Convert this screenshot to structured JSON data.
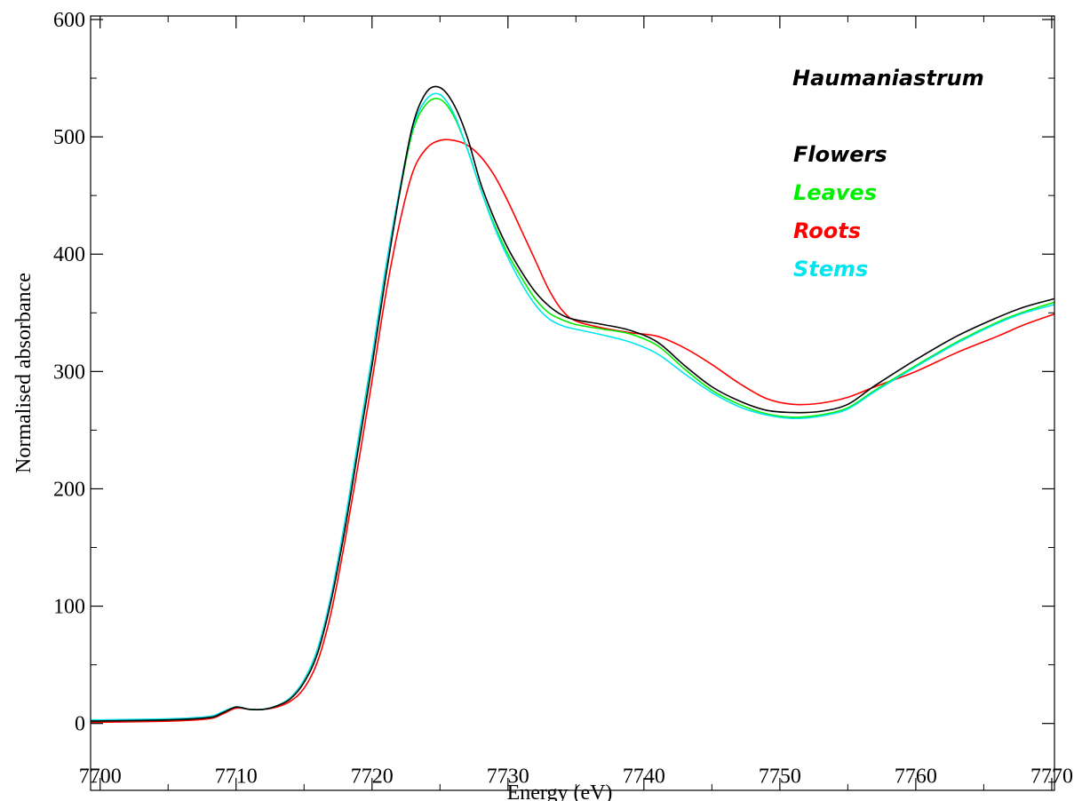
{
  "chart_data": {
    "type": "line",
    "title": "",
    "annotation": "Haumaniastrum",
    "xlabel": "Energy (eV)",
    "ylabel": "Normalised absorbance",
    "xlim": [
      7699.3,
      7770.2
    ],
    "ylim": [
      -57,
      603
    ],
    "xticks": [
      7700,
      7710,
      7720,
      7730,
      7740,
      7750,
      7760,
      7770
    ],
    "yticks": [
      0,
      100,
      200,
      300,
      400,
      500,
      600
    ],
    "grid": false,
    "legend_position": "top-right",
    "series": [
      {
        "name": "Flowers",
        "color": "#000000",
        "x": [
          7699.3,
          7705,
          7708,
          7709,
          7710,
          7711,
          7712,
          7713,
          7714,
          7715,
          7716,
          7717,
          7718,
          7719,
          7720,
          7721,
          7722,
          7723,
          7724,
          7725,
          7726,
          7727,
          7728,
          7729,
          7730,
          7731,
          7732,
          7733,
          7734,
          7735,
          7737,
          7739,
          7741,
          7743,
          7745,
          7747,
          7749,
          7751,
          7753,
          7755,
          7757,
          7760,
          7763,
          7766,
          7768,
          7770.2
        ],
        "y": [
          2,
          3,
          5,
          9,
          14,
          12,
          12,
          15,
          21,
          35,
          60,
          105,
          165,
          235,
          305,
          380,
          450,
          510,
          538,
          542,
          528,
          500,
          460,
          430,
          405,
          385,
          368,
          356,
          348,
          344,
          340,
          335,
          325,
          305,
          287,
          275,
          267,
          265,
          266,
          272,
          288,
          310,
          330,
          346,
          355,
          362
        ]
      },
      {
        "name": "Leaves",
        "color": "#00ee00",
        "x": [
          7699.3,
          7705,
          7708,
          7709,
          7710,
          7711,
          7712,
          7713,
          7714,
          7715,
          7716,
          7717,
          7718,
          7719,
          7720,
          7721,
          7722,
          7723,
          7724,
          7725,
          7726,
          7727,
          7728,
          7729,
          7730,
          7731,
          7732,
          7733,
          7734,
          7735,
          7737,
          7739,
          7741,
          7743,
          7745,
          7747,
          7749,
          7751,
          7753,
          7755,
          7757,
          7760,
          7763,
          7766,
          7768,
          7770.2
        ],
        "y": [
          2,
          3,
          5,
          9,
          14,
          12,
          12,
          15,
          22,
          37,
          63,
          108,
          170,
          240,
          310,
          385,
          450,
          505,
          528,
          532,
          518,
          490,
          455,
          425,
          400,
          380,
          362,
          350,
          344,
          340,
          336,
          332,
          322,
          302,
          284,
          272,
          264,
          261,
          263,
          269,
          284,
          305,
          325,
          342,
          351,
          359
        ]
      },
      {
        "name": "Roots",
        "color": "#ff0000",
        "x": [
          7699.3,
          7705,
          7708,
          7709,
          7710,
          7711,
          7712,
          7713,
          7714,
          7715,
          7716,
          7717,
          7718,
          7719,
          7720,
          7721,
          7722,
          7723,
          7724,
          7725,
          7726,
          7727,
          7728,
          7729,
          7730,
          7731,
          7732,
          7733,
          7734,
          7735,
          7737,
          7739,
          7741,
          7743,
          7745,
          7747,
          7749,
          7751,
          7753,
          7755,
          7757,
          7760,
          7763,
          7766,
          7768,
          7770.2
        ],
        "y": [
          1,
          2,
          4,
          8,
          13,
          12,
          12,
          14,
          19,
          30,
          53,
          95,
          155,
          222,
          292,
          365,
          425,
          470,
          490,
          497,
          497,
          493,
          483,
          467,
          445,
          420,
          395,
          370,
          352,
          343,
          337,
          333,
          330,
          320,
          306,
          290,
          277,
          272,
          273,
          278,
          287,
          300,
          316,
          330,
          340,
          349
        ]
      },
      {
        "name": "Stems",
        "color": "#00e5ee",
        "x": [
          7699.3,
          7705,
          7708,
          7709,
          7710,
          7711,
          7712,
          7713,
          7714,
          7715,
          7716,
          7717,
          7718,
          7719,
          7720,
          7721,
          7722,
          7723,
          7724,
          7725,
          7726,
          7727,
          7728,
          7729,
          7730,
          7731,
          7732,
          7733,
          7734,
          7735,
          7737,
          7739,
          7741,
          7743,
          7745,
          7747,
          7749,
          7751,
          7753,
          7755,
          7757,
          7760,
          7763,
          7766,
          7768,
          7770.2
        ],
        "y": [
          3,
          4,
          6,
          10,
          14,
          12,
          12,
          15,
          22,
          37,
          64,
          110,
          172,
          243,
          313,
          388,
          453,
          508,
          532,
          536,
          520,
          490,
          455,
          423,
          397,
          375,
          357,
          345,
          339,
          336,
          331,
          325,
          315,
          298,
          282,
          270,
          263,
          260,
          262,
          268,
          283,
          304,
          324,
          341,
          350,
          357
        ]
      }
    ]
  }
}
